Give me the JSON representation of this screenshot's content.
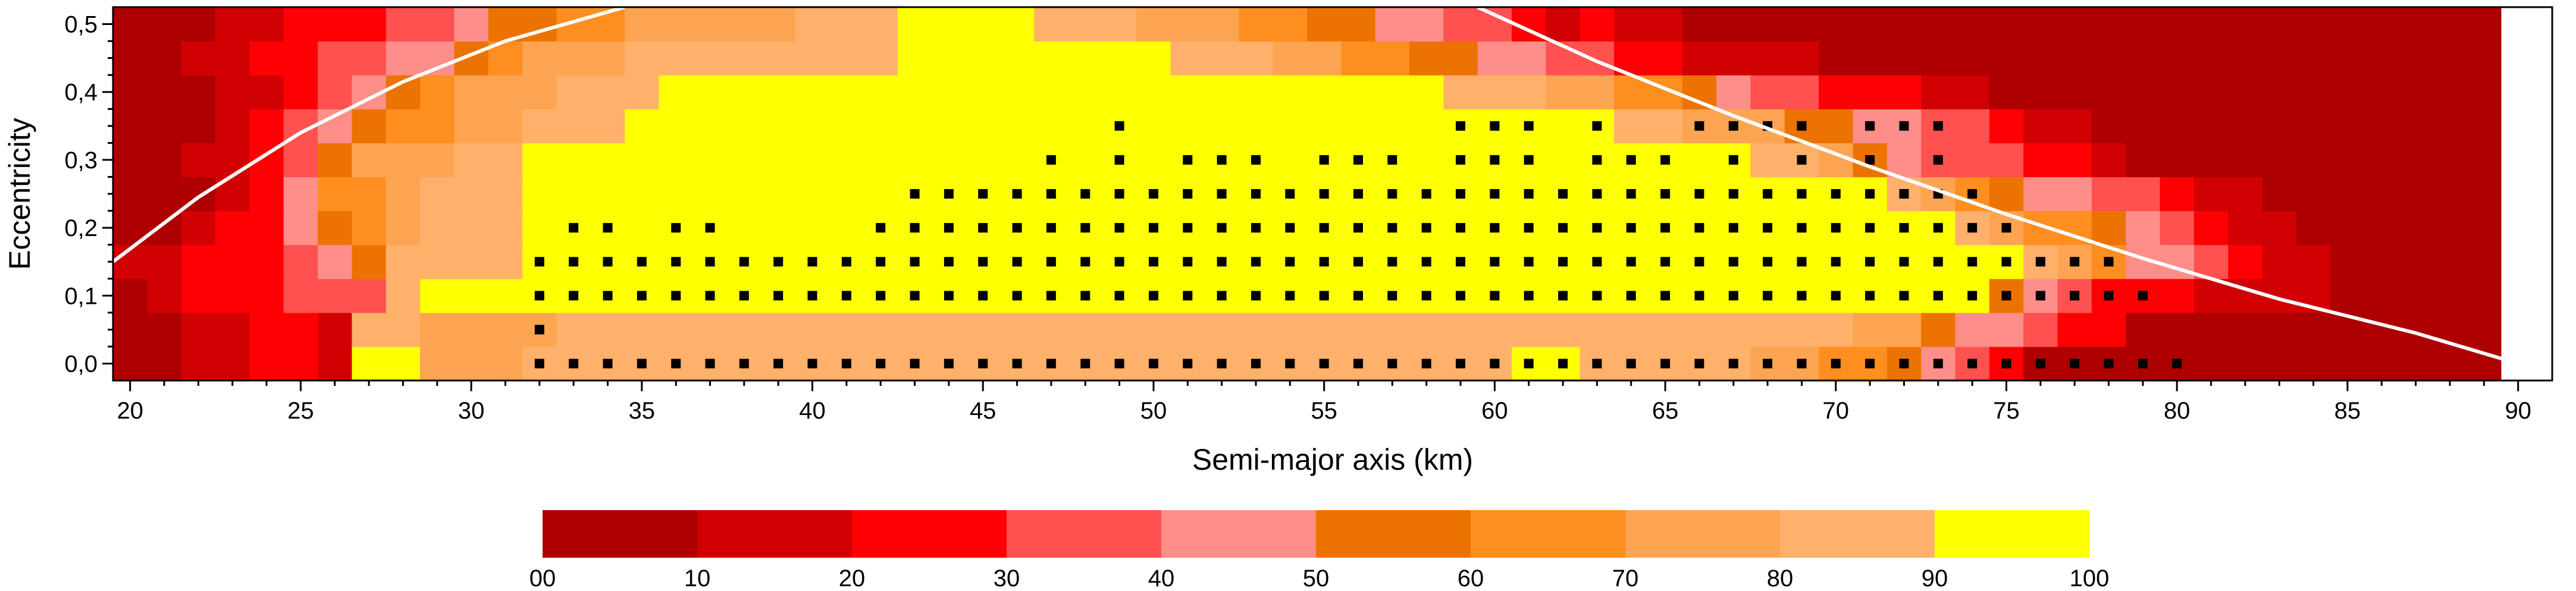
{
  "chart_data": {
    "type": "heatmap",
    "title": "",
    "xlabel": "Semi-major axis (km)",
    "ylabel": "Eccentricity",
    "xlim": [
      19.5,
      91
    ],
    "ylim": [
      -0.025,
      0.525
    ],
    "x_ticks": [
      "20",
      "25",
      "30",
      "35",
      "40",
      "45",
      "50",
      "55",
      "60",
      "65",
      "70",
      "75",
      "80",
      "85",
      "90"
    ],
    "y_ticks": [
      "0,0",
      "0,1",
      "0,2",
      "0,3",
      "0,4",
      "0,5"
    ],
    "grid": {
      "x_min": 19.5,
      "x_step": 1,
      "y_min": -0.025,
      "y_step": 0.05
    },
    "rows": [
      "0011221997778888888888888888888888888888899888887766543200000000000000",
      "0011221887777888888888888888888888888888888888888887754432200000000000",
      "0122233389999999999999999999999999999999999999999999999543222111100000",
      "1122234588889999999999999999999999999999999999999999999987644321100000",
      "0012245678889999999999999999999999999999999999999999998766543211000000",
      "0001246678889999999999999999999999999999999999999999876544332110000000",
      "0011235777889999999999999999999999999999999999998875433322100000000000",
      "0001234566778889999999999999999999999999999988777554433211000000000000",
      "0001123456777888999999999999999999999998887766543322211000000000000000",
      "0011223344567778888888899999999888776655443322111100000000000000000000",
      "0001122233455667777788899998887776655443321211000000000000000000000000"
    ],
    "markers": [
      "000000000000111111111111111111111111111111111111111111111111100000000000",
      "000000000000100000000000000000000000000000000000000000000000000000000000",
      "000000000000111111111111111111111111111111111111111111111111000000000000",
      "000000000000111111111111111111111111111111111111111111111110000000000000",
      "000000000000011011000011111111111111111111111111111111110000000000000000",
      "000000000000000000000001111111111111111111111111111111100000000000000000",
      "000000000000000000000000000101011101110111011101010101000000000000000000",
      "000000000000000000000000000001000000000111010011110111000000000000000000"
    ],
    "marker_x_min": 20,
    "marker_y": [
      0.0,
      0.05,
      0.1,
      0.15,
      0.2,
      0.25,
      0.3,
      0.35
    ],
    "curves": [
      {
        "name": "left-boundary",
        "x": [
          19.5,
          22,
          25,
          28,
          31,
          34.5
        ],
        "y": [
          0.15,
          0.245,
          0.34,
          0.415,
          0.475,
          0.525
        ]
      },
      {
        "name": "right-boundary",
        "x": [
          59.5,
          63,
          67,
          71,
          75,
          79,
          83,
          87,
          90
        ],
        "y": [
          0.525,
          0.445,
          0.365,
          0.29,
          0.22,
          0.155,
          0.095,
          0.045,
          0.0
        ]
      }
    ],
    "colorbar": {
      "colors": [
        "#ae0001",
        "#d10003",
        "#fe0003",
        "#fe5150",
        "#fe8e89",
        "#ec7301",
        "#fe8e20",
        "#fda452",
        "#ffb06a",
        "#feff00"
      ],
      "labels": [
        "00",
        "10",
        "20",
        "30",
        "40",
        "50",
        "60",
        "70",
        "80",
        "90",
        "100"
      ]
    }
  }
}
